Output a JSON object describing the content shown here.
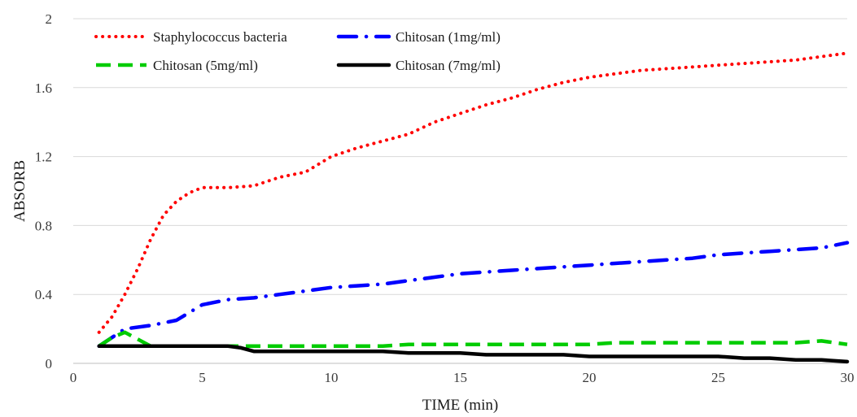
{
  "chart_data": {
    "type": "line",
    "xlabel": "TIME (min)",
    "ylabel": "ABSORB",
    "xlim": [
      0,
      30
    ],
    "ylim": [
      0,
      2
    ],
    "xticks": [
      0,
      5,
      10,
      15,
      20,
      25,
      30
    ],
    "yticks": [
      0,
      0.4,
      0.8,
      1.2,
      1.6,
      2
    ],
    "ytick_labels": [
      "0",
      "0.4",
      "0.8",
      "1.2",
      "1.6",
      "2"
    ],
    "grid": "horizontal",
    "legend_position": "top-left",
    "series": [
      {
        "name": "Staphylococcus bacteria",
        "color": "#ff0000",
        "style": "dotted",
        "x": [
          1,
          1.5,
          2,
          2.5,
          3,
          3.5,
          4,
          4.5,
          5,
          5.5,
          6,
          7,
          8,
          9,
          10,
          11,
          12,
          13,
          14,
          15,
          16,
          17,
          18,
          19,
          20,
          21,
          22,
          23,
          24,
          25,
          26,
          27,
          28,
          29,
          30
        ],
        "values": [
          0.18,
          0.27,
          0.4,
          0.55,
          0.72,
          0.86,
          0.94,
          0.99,
          1.02,
          1.02,
          1.02,
          1.03,
          1.08,
          1.11,
          1.2,
          1.25,
          1.29,
          1.33,
          1.4,
          1.45,
          1.5,
          1.54,
          1.59,
          1.63,
          1.66,
          1.68,
          1.7,
          1.71,
          1.72,
          1.73,
          1.74,
          1.75,
          1.76,
          1.78,
          1.8
        ]
      },
      {
        "name": "Chitosan (1mg/ml)",
        "color": "#0000ff",
        "style": "dashdot",
        "x": [
          1,
          2,
          3,
          4,
          5,
          6,
          7,
          8,
          9,
          10,
          11,
          12,
          13,
          14,
          15,
          16,
          17,
          18,
          19,
          20,
          21,
          22,
          23,
          24,
          25,
          26,
          27,
          28,
          29,
          30
        ],
        "values": [
          0.1,
          0.2,
          0.22,
          0.25,
          0.34,
          0.37,
          0.38,
          0.4,
          0.42,
          0.44,
          0.45,
          0.46,
          0.48,
          0.5,
          0.52,
          0.53,
          0.54,
          0.55,
          0.56,
          0.57,
          0.58,
          0.59,
          0.6,
          0.61,
          0.63,
          0.64,
          0.65,
          0.66,
          0.67,
          0.7
        ]
      },
      {
        "name": "Chitosan (5mg/ml)",
        "color": "#00cc00",
        "style": "dashed",
        "x": [
          1,
          1.5,
          2,
          2.5,
          3,
          4,
          5,
          6,
          7,
          8,
          9,
          10,
          11,
          12,
          13,
          14,
          15,
          16,
          17,
          18,
          19,
          20,
          21,
          22,
          23,
          24,
          25,
          26,
          27,
          28,
          29,
          30
        ],
        "values": [
          0.1,
          0.15,
          0.18,
          0.14,
          0.1,
          0.1,
          0.1,
          0.1,
          0.1,
          0.1,
          0.1,
          0.1,
          0.1,
          0.1,
          0.11,
          0.11,
          0.11,
          0.11,
          0.11,
          0.11,
          0.11,
          0.11,
          0.12,
          0.12,
          0.12,
          0.12,
          0.12,
          0.12,
          0.12,
          0.12,
          0.13,
          0.11
        ]
      },
      {
        "name": "Chitosan (7mg/ml)",
        "color": "#000000",
        "style": "solid",
        "x": [
          1,
          2,
          3,
          4,
          5,
          6,
          6.5,
          7,
          8,
          9,
          10,
          11,
          12,
          13,
          14,
          15,
          16,
          17,
          18,
          19,
          20,
          21,
          22,
          23,
          24,
          25,
          26,
          27,
          28,
          29,
          30
        ],
        "values": [
          0.1,
          0.1,
          0.1,
          0.1,
          0.1,
          0.1,
          0.09,
          0.07,
          0.07,
          0.07,
          0.07,
          0.07,
          0.07,
          0.06,
          0.06,
          0.06,
          0.05,
          0.05,
          0.05,
          0.05,
          0.04,
          0.04,
          0.04,
          0.04,
          0.04,
          0.04,
          0.03,
          0.03,
          0.02,
          0.02,
          0.01
        ]
      }
    ]
  }
}
